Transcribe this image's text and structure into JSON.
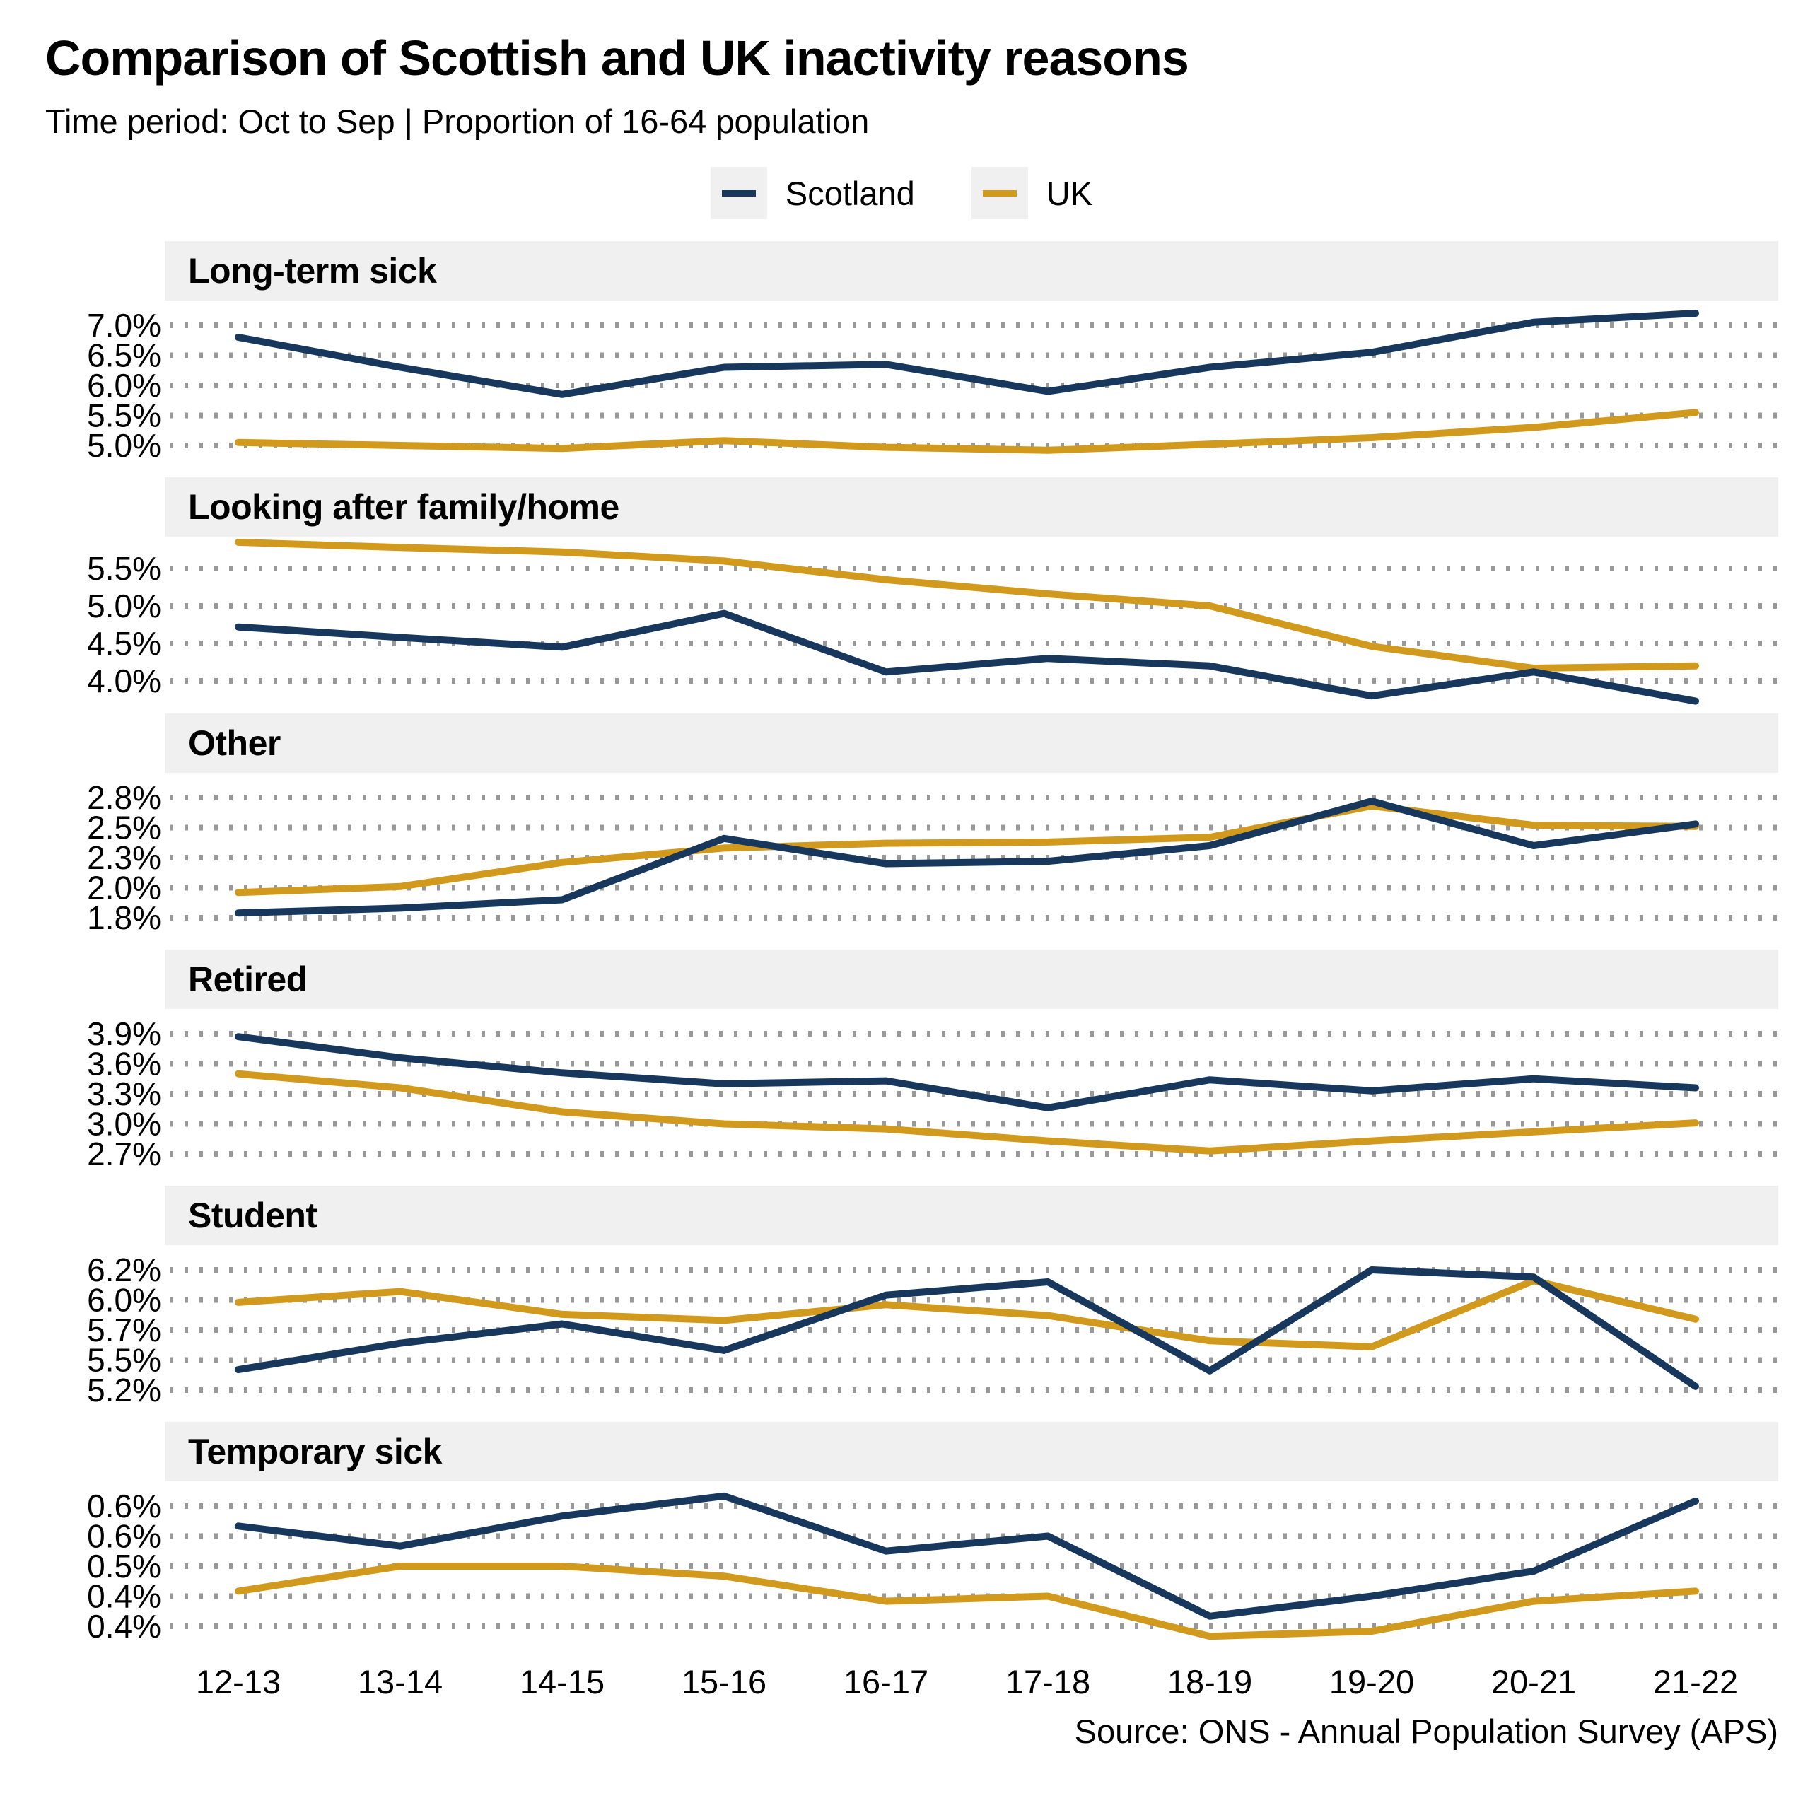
{
  "header": {
    "title": "Comparison of Scottish and UK inactivity reasons",
    "subtitle": "Time period: Oct to Sep | Proportion of 16-64 population"
  },
  "legend": {
    "items": [
      {
        "label": "Scotland",
        "color": "#17375C"
      },
      {
        "label": "UK",
        "color": "#D29A1D"
      }
    ]
  },
  "colors": {
    "scotland": "#17375C",
    "uk": "#D29A1D",
    "header_band": "#F0F0F0",
    "gridline": "#999999"
  },
  "source": "Source: ONS - Annual Population Survey (APS)",
  "chart_data": {
    "type": "line",
    "categories": [
      "12-13",
      "13-14",
      "14-15",
      "15-16",
      "16-17",
      "17-18",
      "18-19",
      "19-20",
      "20-21",
      "21-22"
    ],
    "legend_entries": [
      "Scotland",
      "UK"
    ],
    "legend_position": "top",
    "grid": "dotted-horizontal",
    "panels": [
      {
        "title": "Long-term sick",
        "ytick_labels": [
          "7.0%",
          "6.5%",
          "6.0%",
          "5.5%",
          "5.0%"
        ],
        "ytick_values": [
          7.0,
          6.5,
          6.0,
          5.5,
          5.0
        ],
        "series": [
          {
            "name": "Scotland",
            "values": [
              6.8,
              6.3,
              5.85,
              6.3,
              6.35,
              5.9,
              6.3,
              6.55,
              7.05,
              7.2
            ]
          },
          {
            "name": "UK",
            "values": [
              5.05,
              5.0,
              4.95,
              5.08,
              4.97,
              4.92,
              5.02,
              5.13,
              5.3,
              5.55
            ]
          }
        ]
      },
      {
        "title": "Looking after family/home",
        "ytick_labels": [
          "5.5%",
          "5.0%",
          "4.5%",
          "4.0%"
        ],
        "ytick_values": [
          5.5,
          5.0,
          4.5,
          4.0
        ],
        "series": [
          {
            "name": "Scotland",
            "values": [
              4.72,
              4.58,
              4.45,
              4.9,
              4.12,
              4.3,
              4.2,
              3.8,
              4.12,
              3.73
            ]
          },
          {
            "name": "UK",
            "values": [
              5.85,
              5.78,
              5.72,
              5.6,
              5.35,
              5.16,
              5.0,
              4.46,
              4.17,
              4.2
            ]
          }
        ]
      },
      {
        "title": "Other",
        "ytick_labels": [
          "2.8%",
          "2.5%",
          "2.3%",
          "2.0%",
          "1.8%"
        ],
        "ytick_values": [
          2.75,
          2.5,
          2.25,
          2.0,
          1.75
        ],
        "series": [
          {
            "name": "Scotland",
            "values": [
              1.79,
              1.83,
              1.9,
              2.41,
              2.2,
              2.22,
              2.35,
              2.72,
              2.35,
              2.53
            ]
          },
          {
            "name": "UK",
            "values": [
              1.96,
              2.01,
              2.21,
              2.33,
              2.37,
              2.38,
              2.42,
              2.68,
              2.52,
              2.51
            ]
          }
        ]
      },
      {
        "title": "Retired",
        "ytick_labels": [
          "3.9%",
          "3.6%",
          "3.3%",
          "3.0%",
          "2.7%"
        ],
        "ytick_values": [
          3.9,
          3.6,
          3.3,
          3.0,
          2.7
        ],
        "series": [
          {
            "name": "Scotland",
            "values": [
              3.87,
              3.66,
              3.51,
              3.4,
              3.43,
              3.16,
              3.44,
              3.33,
              3.45,
              3.36
            ]
          },
          {
            "name": "UK",
            "values": [
              3.5,
              3.36,
              3.12,
              3.0,
              2.95,
              2.83,
              2.73,
              2.83,
              2.92,
              3.01
            ]
          }
        ]
      },
      {
        "title": "Student",
        "ytick_labels": [
          "6.2%",
          "6.0%",
          "5.7%",
          "5.5%",
          "5.2%"
        ],
        "ytick_values": [
          6.25,
          6.0,
          5.75,
          5.5,
          5.25
        ],
        "series": [
          {
            "name": "Scotland",
            "values": [
              5.42,
              5.64,
              5.8,
              5.58,
              6.04,
              6.15,
              5.41,
              6.25,
              6.19,
              5.28
            ]
          },
          {
            "name": "UK",
            "values": [
              5.98,
              6.07,
              5.88,
              5.83,
              5.96,
              5.87,
              5.66,
              5.61,
              6.16,
              5.84
            ]
          }
        ]
      },
      {
        "title": "Temporary sick",
        "ytick_labels": [
          "0.6%",
          "0.6%",
          "0.5%",
          "0.4%",
          "0.4%"
        ],
        "ytick_values": [
          0.63,
          0.57,
          0.51,
          0.45,
          0.39
        ],
        "series": [
          {
            "name": "Scotland",
            "values": [
              0.59,
              0.55,
              0.61,
              0.65,
              0.54,
              0.57,
              0.41,
              0.45,
              0.5,
              0.64
            ]
          },
          {
            "name": "UK",
            "values": [
              0.46,
              0.51,
              0.51,
              0.49,
              0.44,
              0.45,
              0.37,
              0.38,
              0.44,
              0.46
            ]
          }
        ]
      }
    ]
  }
}
